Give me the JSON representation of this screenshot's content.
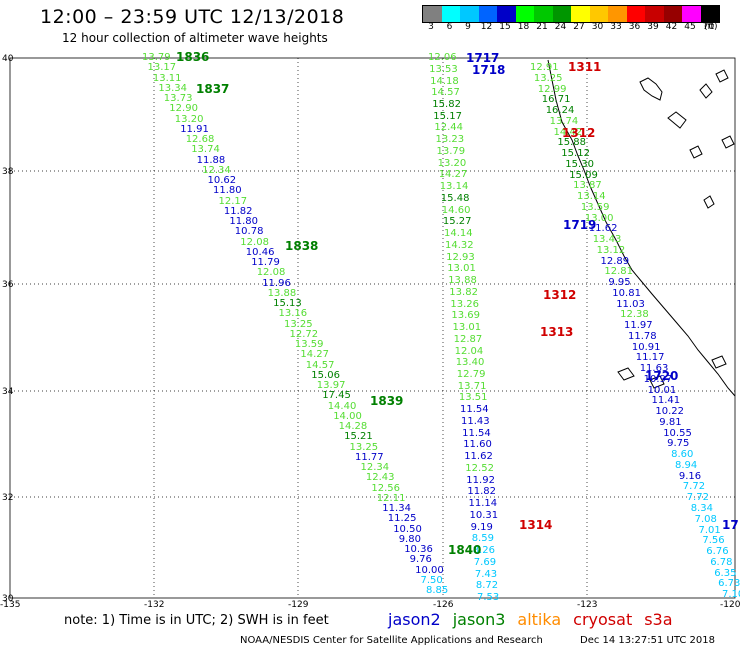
{
  "header": {
    "title": "12:00 – 23:59 UTC 12/13/2018",
    "subtitle": "12 hour collection of altimeter wave heights"
  },
  "colorbar": {
    "labels": [
      "3",
      "6",
      "9",
      "12",
      "15",
      "18",
      "21",
      "24",
      "27",
      "30",
      "33",
      "36",
      "39",
      "42",
      "45",
      "70"
    ],
    "unit": "(ft)",
    "colors": [
      "#808080",
      "#00ffff",
      "#00c8ff",
      "#0064ff",
      "#0000c8",
      "#00ff00",
      "#00c800",
      "#009600",
      "#ffff00",
      "#ffc800",
      "#ff9600",
      "#ff0000",
      "#c80000",
      "#960000",
      "#ff00ff",
      "#000000"
    ]
  },
  "axes": {
    "lat_labels": [
      "40",
      "38",
      "36",
      "34",
      "32",
      "30"
    ],
    "lon_labels": [
      "-135",
      "-132",
      "-129",
      "-126",
      "-123",
      "-120"
    ]
  },
  "pass_labels": [
    {
      "text": "1836",
      "color": "#008000"
    },
    {
      "text": "1837",
      "color": "#008000"
    },
    {
      "text": "1838",
      "color": "#008000"
    },
    {
      "text": "1839",
      "color": "#008000"
    },
    {
      "text": "1840",
      "color": "#008000"
    },
    {
      "text": "1717",
      "color": "#0000c8"
    },
    {
      "text": "1718",
      "color": "#0000c8"
    },
    {
      "text": "1719",
      "color": "#0000c8"
    },
    {
      "text": "1720",
      "color": "#0000c8"
    },
    {
      "text": "17",
      "color": "#0000c8"
    },
    {
      "text": "1311",
      "color": "#d00000"
    },
    {
      "text": "1312",
      "color": "#d00000"
    },
    {
      "text": "1312",
      "color": "#d00000"
    },
    {
      "text": "1313",
      "color": "#d00000"
    },
    {
      "text": "1314",
      "color": "#d00000"
    }
  ],
  "tracks": {
    "track1": [
      {
        "v": "13.79",
        "c": "#55dd33"
      },
      {
        "v": "13.17",
        "c": "#55dd33"
      },
      {
        "v": "13.11",
        "c": "#55dd33"
      },
      {
        "v": "13.34",
        "c": "#55dd33"
      },
      {
        "v": "13.73",
        "c": "#55dd33"
      },
      {
        "v": "12.90",
        "c": "#55dd33"
      },
      {
        "v": "13.20",
        "c": "#55dd33"
      },
      {
        "v": "11.91",
        "c": "#0000c8"
      },
      {
        "v": "12.68",
        "c": "#55dd33"
      },
      {
        "v": "13.74",
        "c": "#55dd33"
      },
      {
        "v": "11.88",
        "c": "#0000c8"
      },
      {
        "v": "12.34",
        "c": "#55dd33"
      },
      {
        "v": "10.62",
        "c": "#0000c8"
      },
      {
        "v": "11.80",
        "c": "#0000c8"
      },
      {
        "v": "12.17",
        "c": "#55dd33"
      },
      {
        "v": "11.82",
        "c": "#0000c8"
      },
      {
        "v": "11.80",
        "c": "#0000c8"
      },
      {
        "v": "10.78",
        "c": "#0000c8"
      },
      {
        "v": "12.08",
        "c": "#55dd33"
      },
      {
        "v": "10.46",
        "c": "#0000c8"
      },
      {
        "v": "11.79",
        "c": "#0000c8"
      },
      {
        "v": "12.08",
        "c": "#55dd33"
      },
      {
        "v": "11.96",
        "c": "#0000c8"
      },
      {
        "v": "13.88",
        "c": "#55dd33"
      },
      {
        "v": "15.13",
        "c": "#008000"
      },
      {
        "v": "13.16",
        "c": "#55dd33"
      },
      {
        "v": "13.25",
        "c": "#55dd33"
      },
      {
        "v": "12.72",
        "c": "#55dd33"
      },
      {
        "v": "13.59",
        "c": "#55dd33"
      },
      {
        "v": "14.27",
        "c": "#55dd33"
      },
      {
        "v": "14.57",
        "c": "#55dd33"
      },
      {
        "v": "15.06",
        "c": "#008000"
      },
      {
        "v": "13.97",
        "c": "#55dd33"
      },
      {
        "v": "17.45",
        "c": "#008000"
      },
      {
        "v": "14.40",
        "c": "#55dd33"
      },
      {
        "v": "14.00",
        "c": "#55dd33"
      },
      {
        "v": "14.28",
        "c": "#55dd33"
      },
      {
        "v": "15.21",
        "c": "#008000"
      },
      {
        "v": "13.25",
        "c": "#55dd33"
      },
      {
        "v": "11.77",
        "c": "#0000c8"
      },
      {
        "v": "12.34",
        "c": "#55dd33"
      },
      {
        "v": "12.43",
        "c": "#55dd33"
      },
      {
        "v": "12.56",
        "c": "#55dd33"
      },
      {
        "v": "12.11",
        "c": "#55dd33"
      },
      {
        "v": "11.34",
        "c": "#0000c8"
      },
      {
        "v": "11.25",
        "c": "#0000c8"
      },
      {
        "v": "10.50",
        "c": "#0000c8"
      },
      {
        "v": "9.80",
        "c": "#0000c8"
      },
      {
        "v": "10.36",
        "c": "#0000c8"
      },
      {
        "v": "9.76",
        "c": "#0000c8"
      },
      {
        "v": "10.00",
        "c": "#0000c8"
      },
      {
        "v": "7.50",
        "c": "#00c8ff"
      },
      {
        "v": "8.85",
        "c": "#00c8ff"
      }
    ],
    "track2": [
      {
        "v": "12.06",
        "c": "#55dd33"
      },
      {
        "v": "13.53",
        "c": "#55dd33"
      },
      {
        "v": "14.18",
        "c": "#55dd33"
      },
      {
        "v": "14.57",
        "c": "#55dd33"
      },
      {
        "v": "15.82",
        "c": "#008000"
      },
      {
        "v": "15.17",
        "c": "#008000"
      },
      {
        "v": "12.44",
        "c": "#55dd33"
      },
      {
        "v": "13.23",
        "c": "#55dd33"
      },
      {
        "v": "13.79",
        "c": "#55dd33"
      },
      {
        "v": "13.20",
        "c": "#55dd33"
      },
      {
        "v": "14.27",
        "c": "#55dd33"
      },
      {
        "v": "13.14",
        "c": "#55dd33"
      },
      {
        "v": "15.48",
        "c": "#008000"
      },
      {
        "v": "14.60",
        "c": "#55dd33"
      },
      {
        "v": "15.27",
        "c": "#008000"
      },
      {
        "v": "14.14",
        "c": "#55dd33"
      },
      {
        "v": "14.32",
        "c": "#55dd33"
      },
      {
        "v": "12.93",
        "c": "#55dd33"
      },
      {
        "v": "13.01",
        "c": "#55dd33"
      },
      {
        "v": "13.88",
        "c": "#55dd33"
      },
      {
        "v": "13.82",
        "c": "#55dd33"
      },
      {
        "v": "13.26",
        "c": "#55dd33"
      },
      {
        "v": "13.69",
        "c": "#55dd33"
      },
      {
        "v": "13.01",
        "c": "#55dd33"
      },
      {
        "v": "12.87",
        "c": "#55dd33"
      },
      {
        "v": "12.04",
        "c": "#55dd33"
      },
      {
        "v": "13.40",
        "c": "#55dd33"
      },
      {
        "v": "12.79",
        "c": "#55dd33"
      },
      {
        "v": "13.71",
        "c": "#55dd33"
      },
      {
        "v": "13.51",
        "c": "#55dd33"
      },
      {
        "v": "11.54",
        "c": "#0000c8"
      },
      {
        "v": "11.43",
        "c": "#0000c8"
      },
      {
        "v": "11.54",
        "c": "#0000c8"
      },
      {
        "v": "11.60",
        "c": "#0000c8"
      },
      {
        "v": "11.62",
        "c": "#0000c8"
      },
      {
        "v": "12.52",
        "c": "#55dd33"
      },
      {
        "v": "11.92",
        "c": "#0000c8"
      },
      {
        "v": "11.82",
        "c": "#0000c8"
      },
      {
        "v": "11.14",
        "c": "#0000c8"
      },
      {
        "v": "10.31",
        "c": "#0000c8"
      },
      {
        "v": "9.19",
        "c": "#0000c8"
      },
      {
        "v": "8.59",
        "c": "#00c8ff"
      },
      {
        "v": "8.26",
        "c": "#00c8ff"
      },
      {
        "v": "7.69",
        "c": "#00c8ff"
      },
      {
        "v": "7.43",
        "c": "#00c8ff"
      },
      {
        "v": "8.72",
        "c": "#00c8ff"
      },
      {
        "v": "7.53",
        "c": "#00c8ff"
      }
    ],
    "track3": [
      {
        "v": "12.91",
        "c": "#55dd33"
      },
      {
        "v": "13.25",
        "c": "#55dd33"
      },
      {
        "v": "12.99",
        "c": "#55dd33"
      },
      {
        "v": "16.71",
        "c": "#008000"
      },
      {
        "v": "16.24",
        "c": "#008000"
      },
      {
        "v": "13.74",
        "c": "#55dd33"
      },
      {
        "v": "14.42",
        "c": "#55dd33"
      },
      {
        "v": "15.88",
        "c": "#008000"
      },
      {
        "v": "15.12",
        "c": "#008000"
      },
      {
        "v": "15.30",
        "c": "#008000"
      },
      {
        "v": "15.09",
        "c": "#008000"
      },
      {
        "v": "13.87",
        "c": "#55dd33"
      },
      {
        "v": "13.14",
        "c": "#55dd33"
      },
      {
        "v": "13.59",
        "c": "#55dd33"
      },
      {
        "v": "13.00",
        "c": "#55dd33"
      },
      {
        "v": "11.62",
        "c": "#0000c8"
      },
      {
        "v": "13.43",
        "c": "#55dd33"
      },
      {
        "v": "13.12",
        "c": "#55dd33"
      },
      {
        "v": "12.89",
        "c": "#0000c8"
      },
      {
        "v": "12.81",
        "c": "#55dd33"
      },
      {
        "v": "9.95",
        "c": "#0000c8"
      },
      {
        "v": "10.81",
        "c": "#0000c8"
      },
      {
        "v": "11.03",
        "c": "#0000c8"
      },
      {
        "v": "12.38",
        "c": "#55dd33"
      },
      {
        "v": "11.97",
        "c": "#0000c8"
      },
      {
        "v": "11.78",
        "c": "#0000c8"
      },
      {
        "v": "10.91",
        "c": "#0000c8"
      },
      {
        "v": "11.17",
        "c": "#0000c8"
      },
      {
        "v": "11.63",
        "c": "#0000c8"
      },
      {
        "v": "10.97",
        "c": "#0000c8"
      },
      {
        "v": "10.01",
        "c": "#0000c8"
      },
      {
        "v": "11.41",
        "c": "#0000c8"
      },
      {
        "v": "10.22",
        "c": "#0000c8"
      },
      {
        "v": "9.81",
        "c": "#0000c8"
      },
      {
        "v": "10.55",
        "c": "#0000c8"
      },
      {
        "v": "9.75",
        "c": "#0000c8"
      },
      {
        "v": "8.60",
        "c": "#00c8ff"
      },
      {
        "v": "8.94",
        "c": "#00c8ff"
      },
      {
        "v": "9.16",
        "c": "#0000c8"
      },
      {
        "v": "7.72",
        "c": "#00c8ff"
      },
      {
        "v": "7.72",
        "c": "#00c8ff"
      },
      {
        "v": "8.34",
        "c": "#00c8ff"
      },
      {
        "v": "7.08",
        "c": "#00c8ff"
      },
      {
        "v": "7.01",
        "c": "#00c8ff"
      },
      {
        "v": "7.56",
        "c": "#00c8ff"
      },
      {
        "v": "6.76",
        "c": "#00c8ff"
      },
      {
        "v": "6.78",
        "c": "#00c8ff"
      },
      {
        "v": "6.35",
        "c": "#00c8ff"
      },
      {
        "v": "6.73",
        "c": "#00c8ff"
      },
      {
        "v": "7.10",
        "c": "#00c8ff"
      }
    ]
  },
  "note": "note:  1) Time is in UTC; 2) SWH is in feet",
  "legend": [
    {
      "text": "jason2",
      "color": "#0000c8"
    },
    {
      "text": "jason3",
      "color": "#008000"
    },
    {
      "text": "altika",
      "color": "#ff8c00"
    },
    {
      "text": "cryosat",
      "color": "#d00000"
    },
    {
      "text": "s3a",
      "color": "#d00000"
    }
  ],
  "footer": {
    "credit": "NOAA/NESDIS Center for Satellite Applications and Research",
    "timestamp": "Dec 14 13:27:51 UTC 2018"
  }
}
